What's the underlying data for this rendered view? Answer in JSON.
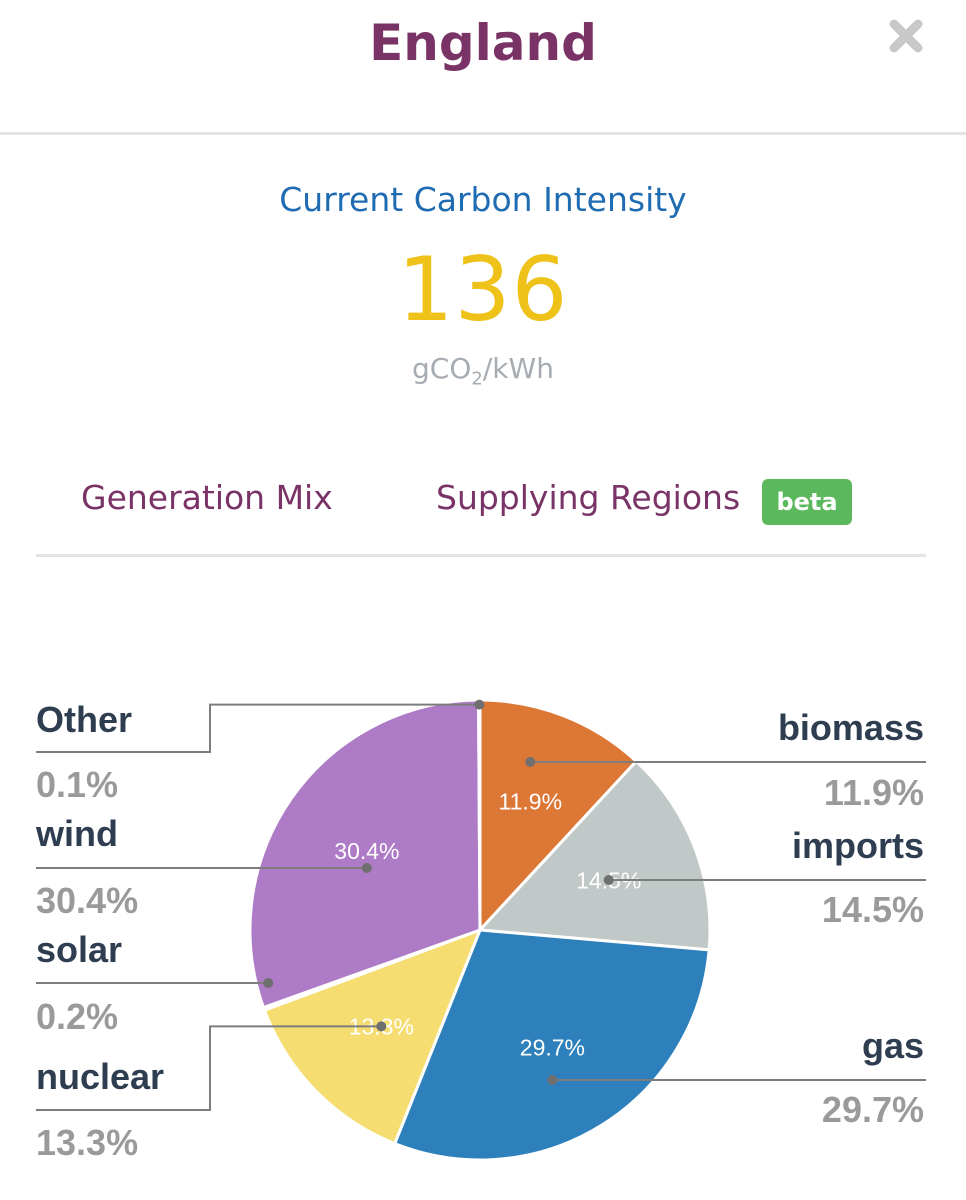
{
  "header": {
    "title": "England"
  },
  "intensity": {
    "label": "Current Carbon Intensity",
    "value": "136",
    "unit_prefix": "gCO",
    "unit_sub": "2",
    "unit_suffix": "/kWh"
  },
  "tabs": [
    {
      "label": "Generation Mix"
    },
    {
      "label": "Supplying Regions",
      "badge": "beta"
    }
  ],
  "colors": {
    "title": "#7a3366",
    "intensity_label": "#1f6cb2",
    "intensity_value": "#eec219",
    "badge": "#5cb85c"
  },
  "icons": {
    "close": "close-icon"
  },
  "chart_data": {
    "type": "pie",
    "slices": [
      {
        "name": "biomass",
        "value": 11.9,
        "label": "11.9%",
        "color": "#dd7735"
      },
      {
        "name": "imports",
        "value": 14.5,
        "label": "14.5%",
        "color": "#c1c8c8"
      },
      {
        "name": "gas",
        "value": 29.7,
        "label": "29.7%",
        "color": "#2d80bb"
      },
      {
        "name": "nuclear",
        "value": 13.3,
        "label": "13.3%",
        "color": "#f5dd72"
      },
      {
        "name": "solar",
        "value": 0.2,
        "label": "0.2%",
        "color": "#f6e37b"
      },
      {
        "name": "wind",
        "value": 30.4,
        "label": "30.4%",
        "color": "#ae7bc6"
      },
      {
        "name": "Other",
        "value": 0.1,
        "label": "0.1%",
        "color": "#9c5eb5"
      }
    ]
  }
}
